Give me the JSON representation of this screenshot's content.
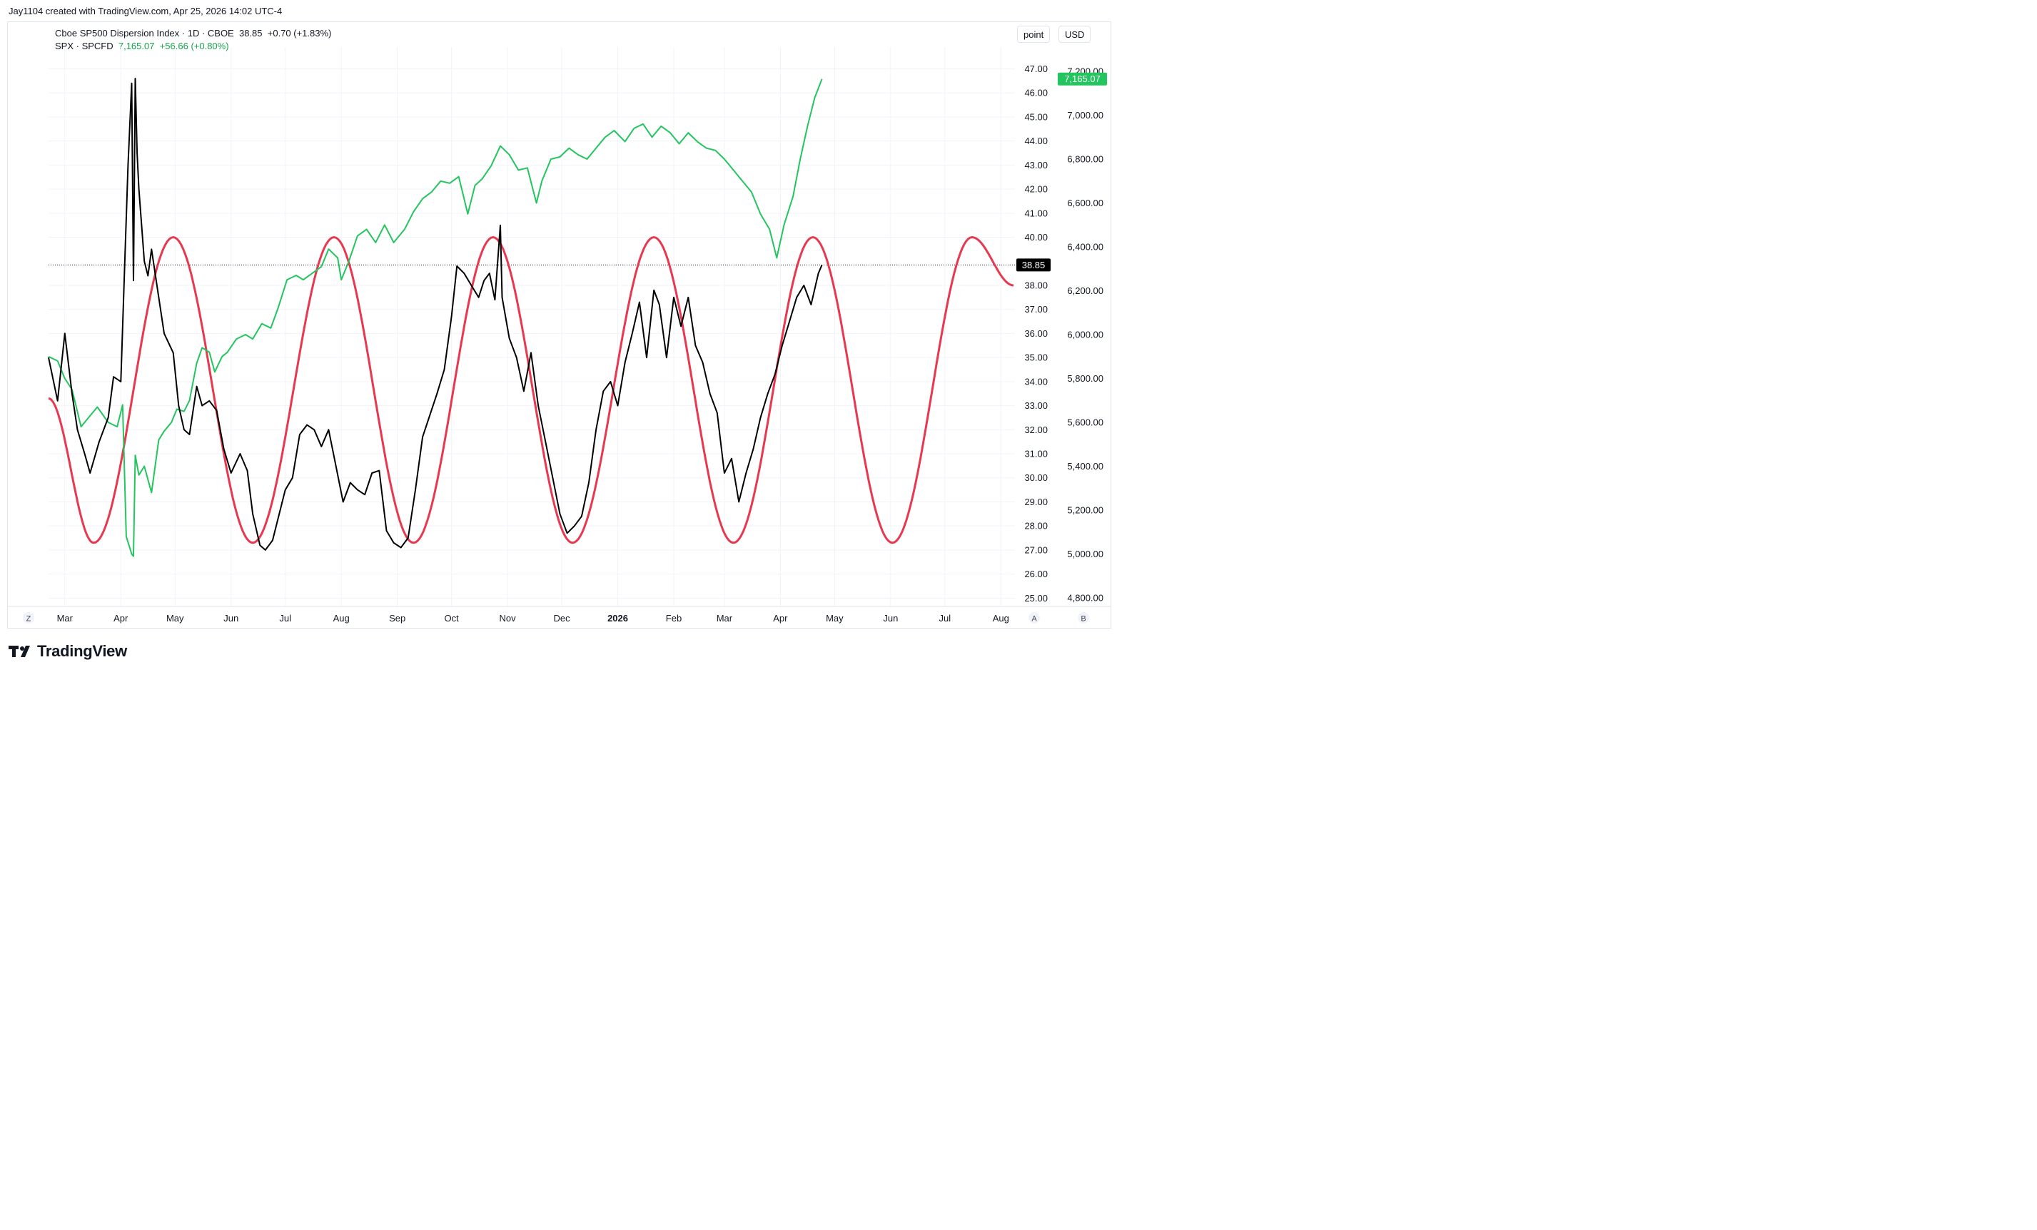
{
  "header": {
    "credit": "Jay1104 created with TradingView.com, Apr 25, 2026 14:02 UTC-4"
  },
  "legend": {
    "series1": {
      "name": "Cboe SP500 Dispersion Index · 1D · CBOE",
      "value": "38.85",
      "change": "+0.70 (+1.83%)"
    },
    "series2": {
      "name": "SPX · SPCFD",
      "value": "7,165.07",
      "change": "+56.66 (+0.80%)"
    }
  },
  "buttons": {
    "point": "point",
    "currency": "USD",
    "left_z": "Z",
    "right_a": "A",
    "right_b": "B"
  },
  "brand": {
    "name": "TradingView"
  },
  "colors": {
    "dispersion": "#000000",
    "spx": "#22c55e",
    "cycle": "#e8384f",
    "spx_tag": "#22c55e",
    "disp_tag": "#000000"
  },
  "chart_data": {
    "type": "line",
    "x_ticks": [
      "Mar",
      "Apr",
      "May",
      "Jun",
      "Jul",
      "Aug",
      "Sep",
      "Oct",
      "Nov",
      "Dec",
      "2026",
      "Feb",
      "Mar",
      "Apr",
      "May",
      "Jun",
      "Jul",
      "Aug"
    ],
    "left_axis": {
      "ticks": [
        "47.00",
        "46.00",
        "45.00",
        "44.00",
        "43.00",
        "42.00",
        "41.00",
        "40.00",
        "38.00",
        "37.00",
        "36.00",
        "35.00",
        "34.00",
        "33.00",
        "32.00",
        "31.00",
        "30.00",
        "29.00",
        "28.00",
        "27.00",
        "26.00",
        "25.00"
      ],
      "ylim": [
        24.7,
        47.4
      ]
    },
    "right_axis": {
      "ticks": [
        "7,200.00",
        "7,000.00",
        "6,800.00",
        "6,600.00",
        "6,400.00",
        "6,200.00",
        "6,000.00",
        "5,800.00",
        "5,600.00",
        "5,400.00",
        "5,200.00",
        "5,000.00",
        "4,800.00"
      ],
      "ylim": [
        4760,
        7230
      ]
    },
    "last_values": {
      "dispersion": "38.85",
      "spx": "7,165.07"
    },
    "series": [
      {
        "name": "Cboe SP500 Dispersion Index",
        "axis": "left",
        "x": [
          "2025-02-20",
          "2025-02-25",
          "2025-03-01",
          "2025-03-05",
          "2025-03-08",
          "2025-03-12",
          "2025-03-15",
          "2025-03-20",
          "2025-03-25",
          "2025-03-28",
          "2025-04-01",
          "2025-04-03",
          "2025-04-05",
          "2025-04-07",
          "2025-04-08",
          "2025-04-09",
          "2025-04-10",
          "2025-04-11",
          "2025-04-14",
          "2025-04-16",
          "2025-04-18",
          "2025-04-22",
          "2025-04-25",
          "2025-04-30",
          "2025-05-03",
          "2025-05-06",
          "2025-05-09",
          "2025-05-13",
          "2025-05-16",
          "2025-05-20",
          "2025-05-24",
          "2025-05-28",
          "2025-06-01",
          "2025-06-06",
          "2025-06-10",
          "2025-06-13",
          "2025-06-17",
          "2025-06-20",
          "2025-06-24",
          "2025-06-27",
          "2025-07-01",
          "2025-07-05",
          "2025-07-09",
          "2025-07-13",
          "2025-07-17",
          "2025-07-21",
          "2025-07-25",
          "2025-07-29",
          "2025-08-02",
          "2025-08-06",
          "2025-08-10",
          "2025-08-14",
          "2025-08-18",
          "2025-08-22",
          "2025-08-26",
          "2025-08-30",
          "2025-09-03",
          "2025-09-07",
          "2025-09-11",
          "2025-09-15",
          "2025-09-19",
          "2025-09-23",
          "2025-09-27",
          "2025-10-01",
          "2025-10-04",
          "2025-10-08",
          "2025-10-12",
          "2025-10-16",
          "2025-10-19",
          "2025-10-22",
          "2025-10-25",
          "2025-10-28",
          "2025-10-29",
          "2025-11-02",
          "2025-11-06",
          "2025-11-10",
          "2025-11-14",
          "2025-11-18",
          "2025-11-22",
          "2025-11-26",
          "2025-11-30",
          "2025-12-04",
          "2025-12-08",
          "2025-12-12",
          "2025-12-16",
          "2025-12-20",
          "2025-12-24",
          "2025-12-28",
          "2026-01-01",
          "2026-01-05",
          "2026-01-09",
          "2026-01-13",
          "2026-01-17",
          "2026-01-21",
          "2026-01-24",
          "2026-01-28",
          "2026-02-01",
          "2026-02-05",
          "2026-02-09",
          "2026-02-13",
          "2026-02-17",
          "2026-02-21",
          "2026-02-25",
          "2026-03-01",
          "2026-03-05",
          "2026-03-09",
          "2026-03-13",
          "2026-03-17",
          "2026-03-21",
          "2026-03-25",
          "2026-03-29",
          "2026-04-02",
          "2026-04-06",
          "2026-04-10",
          "2026-04-14",
          "2026-04-18",
          "2026-04-22",
          "2026-04-24"
        ],
        "values": [
          35.0,
          33.2,
          36.0,
          33.5,
          32.0,
          31.0,
          30.2,
          31.5,
          32.5,
          34.2,
          34.0,
          38.5,
          43.0,
          46.4,
          38.2,
          46.6,
          43.5,
          42.0,
          39.0,
          38.4,
          39.5,
          37.5,
          36.0,
          35.2,
          33.0,
          32.0,
          31.8,
          33.8,
          33.0,
          33.2,
          32.8,
          31.2,
          30.2,
          31.0,
          30.3,
          28.5,
          27.2,
          27.0,
          27.4,
          28.3,
          29.5,
          30.0,
          31.8,
          32.2,
          32.0,
          31.3,
          32.0,
          30.5,
          29.0,
          29.8,
          29.5,
          29.3,
          30.2,
          30.3,
          27.8,
          27.3,
          27.1,
          27.5,
          29.5,
          31.7,
          32.6,
          33.5,
          34.5,
          36.7,
          38.8,
          38.5,
          38.0,
          37.5,
          38.2,
          38.5,
          37.4,
          40.5,
          37.5,
          35.8,
          35.0,
          33.6,
          35.2,
          33.0,
          31.5,
          30.0,
          28.5,
          27.7,
          28.0,
          28.4,
          29.8,
          32.0,
          33.6,
          34.0,
          33.0,
          34.8,
          36.0,
          37.3,
          35.0,
          37.8,
          37.2,
          35.0,
          37.5,
          36.3,
          37.5,
          35.5,
          34.8,
          33.5,
          32.7,
          30.2,
          30.8,
          29.0,
          30.2,
          31.2,
          32.5,
          33.5,
          34.3,
          35.5,
          36.5,
          37.5,
          38.0,
          37.2,
          38.5,
          38.85
        ]
      },
      {
        "name": "SPX",
        "axis": "right",
        "x": [
          "2025-02-20",
          "2025-02-25",
          "2025-03-01",
          "2025-03-05",
          "2025-03-10",
          "2025-03-14",
          "2025-03-19",
          "2025-03-25",
          "2025-03-30",
          "2025-04-02",
          "2025-04-04",
          "2025-04-07",
          "2025-04-08",
          "2025-04-09",
          "2025-04-11",
          "2025-04-14",
          "2025-04-18",
          "2025-04-22",
          "2025-04-25",
          "2025-04-29",
          "2025-05-02",
          "2025-05-06",
          "2025-05-09",
          "2025-05-13",
          "2025-05-16",
          "2025-05-20",
          "2025-05-23",
          "2025-05-27",
          "2025-05-30",
          "2025-06-04",
          "2025-06-09",
          "2025-06-13",
          "2025-06-18",
          "2025-06-23",
          "2025-06-27",
          "2025-07-02",
          "2025-07-07",
          "2025-07-11",
          "2025-07-16",
          "2025-07-21",
          "2025-07-25",
          "2025-07-30",
          "2025-08-01",
          "2025-08-05",
          "2025-08-10",
          "2025-08-15",
          "2025-08-20",
          "2025-08-25",
          "2025-08-30",
          "2025-09-05",
          "2025-09-10",
          "2025-09-15",
          "2025-09-20",
          "2025-09-25",
          "2025-09-30",
          "2025-10-05",
          "2025-10-10",
          "2025-10-14",
          "2025-10-18",
          "2025-10-23",
          "2025-10-28",
          "2025-11-02",
          "2025-11-07",
          "2025-11-12",
          "2025-11-17",
          "2025-11-20",
          "2025-11-25",
          "2025-11-30",
          "2025-12-05",
          "2025-12-10",
          "2025-12-15",
          "2025-12-20",
          "2025-12-25",
          "2025-12-30",
          "2026-01-05",
          "2026-01-10",
          "2026-01-15",
          "2026-01-20",
          "2026-01-25",
          "2026-01-30",
          "2026-02-04",
          "2026-02-09",
          "2026-02-14",
          "2026-02-19",
          "2026-02-24",
          "2026-03-01",
          "2026-03-06",
          "2026-03-11",
          "2026-03-16",
          "2026-03-21",
          "2026-03-26",
          "2026-03-30",
          "2026-04-03",
          "2026-04-08",
          "2026-04-12",
          "2026-04-16",
          "2026-04-20",
          "2026-04-24"
        ],
        "values": [
          5900,
          5880,
          5800,
          5750,
          5580,
          5620,
          5670,
          5600,
          5580,
          5680,
          5080,
          5000,
          4990,
          5450,
          5360,
          5400,
          5280,
          5520,
          5560,
          5600,
          5660,
          5650,
          5700,
          5870,
          5940,
          5920,
          5830,
          5900,
          5920,
          5980,
          6000,
          5980,
          6050,
          6030,
          6120,
          6250,
          6270,
          6250,
          6280,
          6310,
          6390,
          6350,
          6250,
          6330,
          6450,
          6480,
          6420,
          6500,
          6420,
          6480,
          6560,
          6620,
          6650,
          6700,
          6690,
          6720,
          6550,
          6680,
          6710,
          6770,
          6860,
          6820,
          6750,
          6760,
          6600,
          6700,
          6800,
          6810,
          6850,
          6820,
          6800,
          6850,
          6900,
          6930,
          6880,
          6940,
          6960,
          6900,
          6950,
          6920,
          6870,
          6920,
          6880,
          6850,
          6840,
          6800,
          6750,
          6700,
          6650,
          6550,
          6480,
          6350,
          6500,
          6630,
          6800,
          6950,
          7080,
          7165.07
        ]
      },
      {
        "name": "Cycle",
        "axis": "left",
        "shape": "sine",
        "x": [
          "2025-02-20",
          "2025-03-17",
          "2025-04-30",
          "2025-06-13",
          "2025-07-28",
          "2025-09-10",
          "2025-10-24",
          "2025-12-07",
          "2026-01-21",
          "2026-03-06",
          "2026-04-19",
          "2026-06-02",
          "2026-07-16",
          "2026-08-08"
        ],
        "values": [
          33.3,
          27.3,
          40.0,
          27.3,
          40.0,
          27.3,
          40.0,
          27.3,
          40.0,
          27.3,
          40.0,
          27.3,
          40.0,
          38.0
        ]
      }
    ]
  }
}
